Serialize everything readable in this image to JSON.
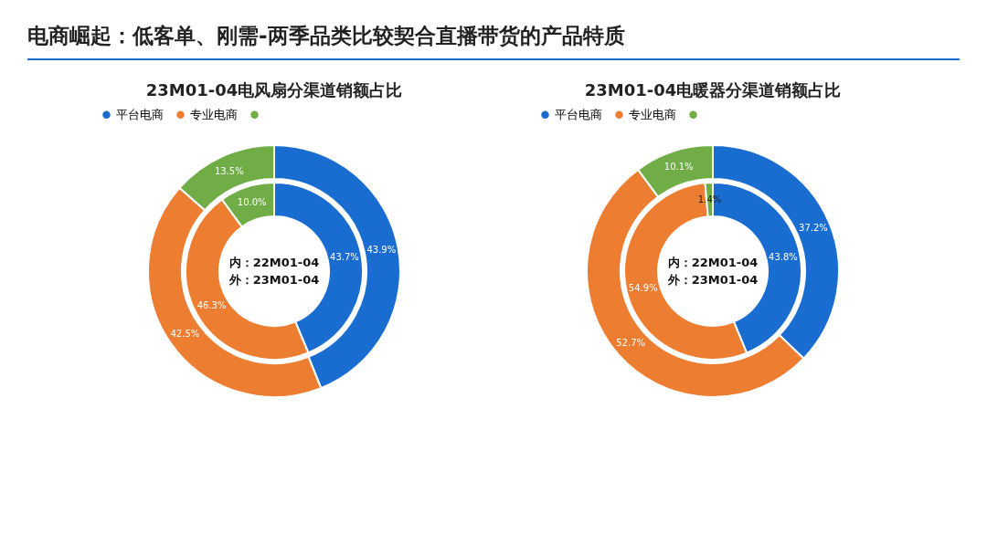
{
  "chart_data": [
    {
      "type": "other",
      "title": "电商崛起：低客单、刚需-两季品类比较契合直播带货的产品特质"
    },
    {
      "type": "donut",
      "title": "23M01-04电风扇分渠道销额占比",
      "categories": [
        "平台电商",
        "专业电商",
        null
      ],
      "colors": [
        "#1a6dd0",
        "#ed7d31",
        "#70ad47"
      ],
      "legend": "top",
      "series": [
        {
          "values": [
            43.9,
            42.5,
            13.5
          ],
          "value_labels": [
            "43.9%",
            "42.5%",
            "13.5%"
          ]
        },
        {
          "values": [
            43.7,
            46.3,
            10.0
          ],
          "value_labels": [
            "43.7%",
            "46.3%",
            "10.0%"
          ]
        }
      ],
      "annotations": [
        "内：22M01-04",
        "外：23M01-04"
      ]
    },
    {
      "type": "donut",
      "title": "23M01-04电暖器分渠道销额占比",
      "categories": [
        "平台电商",
        "专业电商",
        null
      ],
      "colors": [
        "#1a6dd0",
        "#ed7d31",
        "#70ad47"
      ],
      "legend": "top",
      "series": [
        {
          "values": [
            37.2,
            52.7,
            10.1
          ],
          "value_labels": [
            "37.2%",
            "52.7%",
            "10.1%"
          ]
        },
        {
          "values": [
            43.8,
            54.9,
            1.4
          ],
          "value_labels": [
            "43.8%",
            "54.9%",
            "1.4%"
          ]
        }
      ],
      "annotations": [
        "内：22M01-04",
        "外：23M01-04"
      ]
    }
  ]
}
